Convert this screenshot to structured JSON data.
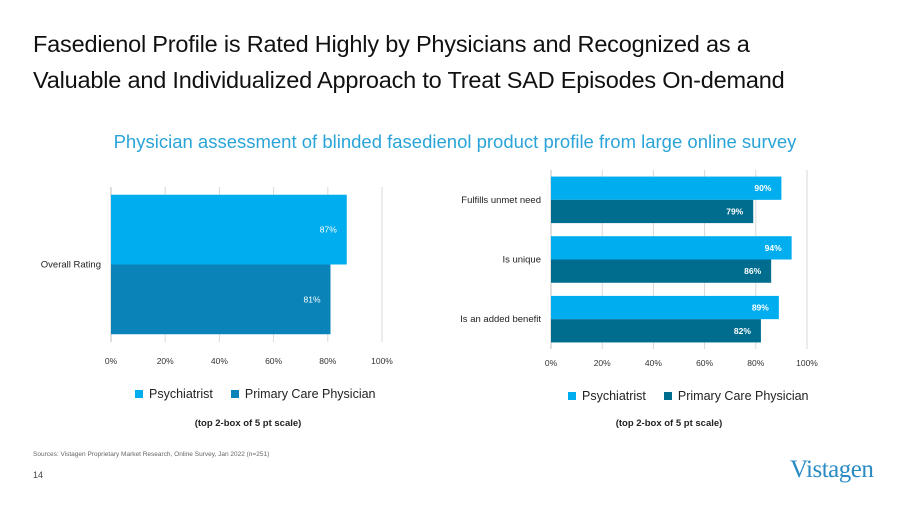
{
  "slide": {
    "title_line1": "Fasedienol Profile is Rated Highly by Physicians and Recognized as a",
    "title_line2": "Valuable and Individualized Approach to Treat SAD Episodes On-demand",
    "subtitle": "Physician assessment of blinded fasedienol product profile from large online survey",
    "sources": "Sources: Vistagen Proprietary Market Research, Online Survey, Jan 2022 (n=251)",
    "page_number": "14",
    "logo_text": "Vistagen"
  },
  "colors": {
    "psychiatrist_left": "#00adef",
    "primary_care_left": "#0a83b8",
    "psychiatrist_right": "#00adef",
    "primary_care_right": "#006d8f",
    "grid": "#d9d9d9",
    "axis": "#bfbfbf"
  },
  "chart_data": [
    {
      "type": "bar",
      "orientation": "horizontal",
      "categories": [
        "Overall Rating"
      ],
      "series": [
        {
          "name": "Psychiatrist",
          "values": [
            87
          ],
          "labels": [
            "87%"
          ]
        },
        {
          "name": "Primary Care Physician",
          "values": [
            81
          ],
          "labels": [
            "81%"
          ]
        }
      ],
      "xlim": [
        0,
        100
      ],
      "xticks": [
        "0%",
        "20%",
        "40%",
        "60%",
        "80%",
        "100%"
      ],
      "legend": [
        "Psychiatrist",
        "Primary Care Physician"
      ],
      "note": "(top 2-box of 5 pt scale)"
    },
    {
      "type": "bar",
      "orientation": "horizontal",
      "categories": [
        "Fulfills unmet need",
        "Is unique",
        "Is an added benefit"
      ],
      "series": [
        {
          "name": "Psychiatrist",
          "values": [
            90,
            94,
            89
          ],
          "labels": [
            "90%",
            "94%",
            "89%"
          ]
        },
        {
          "name": "Primary Care Physician",
          "values": [
            79,
            86,
            82
          ],
          "labels": [
            "79%",
            "86%",
            "82%"
          ]
        }
      ],
      "xlim": [
        0,
        100
      ],
      "xticks": [
        "0%",
        "20%",
        "40%",
        "60%",
        "80%",
        "100%"
      ],
      "legend": [
        "Psychiatrist",
        "Primary Care Physician"
      ],
      "note": "(top 2-box of 5 pt scale)"
    }
  ]
}
